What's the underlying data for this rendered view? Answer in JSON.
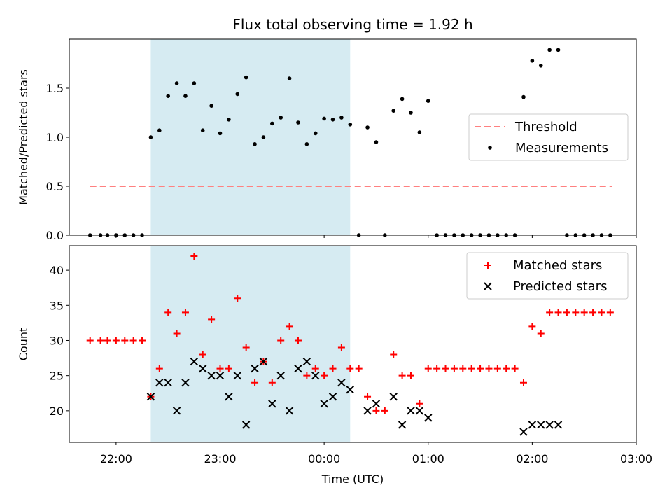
{
  "chart_data": [
    {
      "type": "scatter",
      "title": "Flux total observing time = 1.92 h",
      "xlabel": "",
      "ylabel": "Matched/Predicted stars",
      "xlim": [
        "21:33",
        "03:00"
      ],
      "ylim": [
        0,
        2.0
      ],
      "yticks": [
        "0.0",
        "0.5",
        "1.0",
        "1.5"
      ],
      "grid": false,
      "legend": "center-right",
      "shaded_interval": [
        "22:20",
        "00:15"
      ],
      "series": [
        {
          "name": "Threshold",
          "style": "dashed-line",
          "color": "#ff8080",
          "points": [
            [
              "21:45",
              0.5
            ],
            [
              "02:46",
              0.5
            ]
          ]
        },
        {
          "name": "Measurements",
          "style": "dot",
          "color": "#000000",
          "points": [
            [
              "21:45",
              0
            ],
            [
              "21:51",
              0
            ],
            [
              "21:55",
              0
            ],
            [
              "22:00",
              0
            ],
            [
              "22:05",
              0
            ],
            [
              "22:10",
              0
            ],
            [
              "22:15",
              0
            ],
            [
              "22:20",
              1.0
            ],
            [
              "22:25",
              1.07
            ],
            [
              "22:30",
              1.42
            ],
            [
              "22:35",
              1.55
            ],
            [
              "22:40",
              1.42
            ],
            [
              "22:45",
              1.55
            ],
            [
              "22:50",
              1.07
            ],
            [
              "22:55",
              1.32
            ],
            [
              "23:00",
              1.04
            ],
            [
              "23:05",
              1.18
            ],
            [
              "23:10",
              1.44
            ],
            [
              "23:15",
              1.61
            ],
            [
              "23:20",
              0.93
            ],
            [
              "23:25",
              1.0
            ],
            [
              "23:30",
              1.14
            ],
            [
              "23:35",
              1.2
            ],
            [
              "23:40",
              1.6
            ],
            [
              "23:45",
              1.15
            ],
            [
              "23:50",
              0.93
            ],
            [
              "23:55",
              1.04
            ],
            [
              "00:00",
              1.19
            ],
            [
              "00:05",
              1.18
            ],
            [
              "00:10",
              1.2
            ],
            [
              "00:15",
              1.13
            ],
            [
              "00:20",
              0
            ],
            [
              "00:25",
              1.1
            ],
            [
              "00:30",
              0.95
            ],
            [
              "00:35",
              0
            ],
            [
              "00:40",
              1.27
            ],
            [
              "00:45",
              1.39
            ],
            [
              "00:50",
              1.25
            ],
            [
              "00:55",
              1.05
            ],
            [
              "01:00",
              1.37
            ],
            [
              "01:05",
              0
            ],
            [
              "01:10",
              0
            ],
            [
              "01:15",
              0
            ],
            [
              "01:20",
              0
            ],
            [
              "01:25",
              0
            ],
            [
              "01:30",
              0
            ],
            [
              "01:35",
              0
            ],
            [
              "01:40",
              0
            ],
            [
              "01:45",
              0
            ],
            [
              "01:50",
              0
            ],
            [
              "01:55",
              1.41
            ],
            [
              "02:00",
              1.78
            ],
            [
              "02:05",
              1.73
            ],
            [
              "02:10",
              1.89
            ],
            [
              "02:15",
              1.89
            ],
            [
              "02:20",
              0
            ],
            [
              "02:25",
              0
            ],
            [
              "02:30",
              0
            ],
            [
              "02:35",
              0
            ],
            [
              "02:40",
              0
            ],
            [
              "02:45",
              0
            ]
          ]
        }
      ]
    },
    {
      "type": "scatter",
      "title": "",
      "xlabel": "Time (UTC)",
      "ylabel": "Count",
      "xlim": [
        "21:33",
        "03:00"
      ],
      "ylim": [
        15.5,
        43.5
      ],
      "yticks": [
        "20",
        "25",
        "30",
        "35",
        "40"
      ],
      "xticks": [
        "22:00",
        "23:00",
        "00:00",
        "01:00",
        "02:00",
        "03:00"
      ],
      "grid": false,
      "legend": "top-right",
      "shaded_interval": [
        "22:20",
        "00:15"
      ],
      "series": [
        {
          "name": "Matched stars",
          "style": "plus",
          "color": "#ff0000",
          "points": [
            [
              "21:45",
              30
            ],
            [
              "21:51",
              30
            ],
            [
              "21:55",
              30
            ],
            [
              "22:00",
              30
            ],
            [
              "22:05",
              30
            ],
            [
              "22:10",
              30
            ],
            [
              "22:15",
              30
            ],
            [
              "22:20",
              22
            ],
            [
              "22:25",
              26
            ],
            [
              "22:30",
              34
            ],
            [
              "22:35",
              31
            ],
            [
              "22:40",
              34
            ],
            [
              "22:45",
              42
            ],
            [
              "22:50",
              28
            ],
            [
              "22:55",
              33
            ],
            [
              "23:00",
              26
            ],
            [
              "23:05",
              26
            ],
            [
              "23:10",
              36
            ],
            [
              "23:15",
              29
            ],
            [
              "23:20",
              24
            ],
            [
              "23:25",
              27
            ],
            [
              "23:30",
              24
            ],
            [
              "23:35",
              30
            ],
            [
              "23:40",
              32
            ],
            [
              "23:45",
              30
            ],
            [
              "23:50",
              25
            ],
            [
              "23:55",
              26
            ],
            [
              "00:00",
              25
            ],
            [
              "00:05",
              26
            ],
            [
              "00:10",
              29
            ],
            [
              "00:15",
              26
            ],
            [
              "00:20",
              26
            ],
            [
              "00:25",
              22
            ],
            [
              "00:30",
              20
            ],
            [
              "00:35",
              20
            ],
            [
              "00:40",
              28
            ],
            [
              "00:45",
              25
            ],
            [
              "00:50",
              25
            ],
            [
              "00:55",
              21
            ],
            [
              "01:00",
              26
            ],
            [
              "01:05",
              26
            ],
            [
              "01:10",
              26
            ],
            [
              "01:15",
              26
            ],
            [
              "01:20",
              26
            ],
            [
              "01:25",
              26
            ],
            [
              "01:30",
              26
            ],
            [
              "01:35",
              26
            ],
            [
              "01:40",
              26
            ],
            [
              "01:45",
              26
            ],
            [
              "01:50",
              26
            ],
            [
              "01:55",
              24
            ],
            [
              "02:00",
              32
            ],
            [
              "02:05",
              31
            ],
            [
              "02:10",
              34
            ],
            [
              "02:15",
              34
            ],
            [
              "02:20",
              34
            ],
            [
              "02:25",
              34
            ],
            [
              "02:30",
              34
            ],
            [
              "02:35",
              34
            ],
            [
              "02:40",
              34
            ],
            [
              "02:45",
              34
            ]
          ]
        },
        {
          "name": "Predicted stars",
          "style": "x",
          "color": "#000000",
          "points": [
            [
              "22:20",
              22
            ],
            [
              "22:25",
              24
            ],
            [
              "22:30",
              24
            ],
            [
              "22:35",
              20
            ],
            [
              "22:40",
              24
            ],
            [
              "22:45",
              27
            ],
            [
              "22:50",
              26
            ],
            [
              "22:55",
              25
            ],
            [
              "23:00",
              25
            ],
            [
              "23:05",
              22
            ],
            [
              "23:10",
              25
            ],
            [
              "23:15",
              18
            ],
            [
              "23:20",
              26
            ],
            [
              "23:25",
              27
            ],
            [
              "23:30",
              21
            ],
            [
              "23:35",
              25
            ],
            [
              "23:40",
              20
            ],
            [
              "23:45",
              26
            ],
            [
              "23:50",
              27
            ],
            [
              "23:55",
              25
            ],
            [
              "00:00",
              21
            ],
            [
              "00:05",
              22
            ],
            [
              "00:10",
              24
            ],
            [
              "00:15",
              23
            ],
            [
              "00:25",
              20
            ],
            [
              "00:30",
              21
            ],
            [
              "00:40",
              22
            ],
            [
              "00:45",
              18
            ],
            [
              "00:50",
              20
            ],
            [
              "00:55",
              20
            ],
            [
              "01:00",
              19
            ],
            [
              "01:55",
              17
            ],
            [
              "02:00",
              18
            ],
            [
              "02:05",
              18
            ],
            [
              "02:10",
              18
            ],
            [
              "02:15",
              18
            ]
          ]
        }
      ]
    }
  ]
}
